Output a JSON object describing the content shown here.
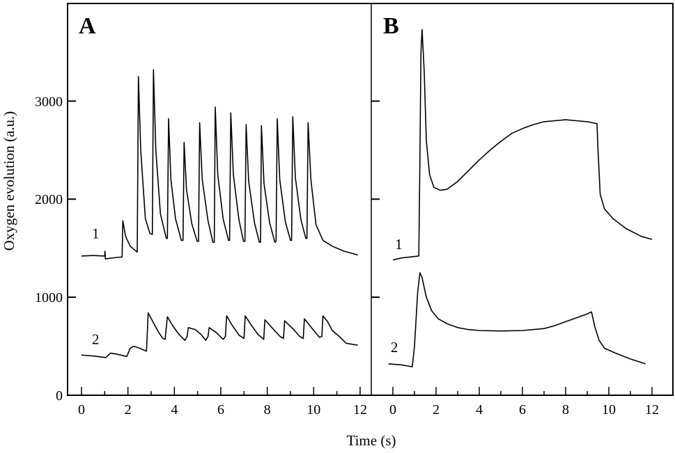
{
  "figure": {
    "ylabel": "Oxygen evolution (a.u.)",
    "xlabel": "Time (s)",
    "yticks": [
      0,
      1000,
      2000,
      3000
    ],
    "ytick_labels": [
      "0",
      "1000",
      "2000",
      "3000"
    ],
    "xticks": [
      0,
      2,
      4,
      6,
      8,
      10,
      12
    ],
    "xtick_labels": [
      "0",
      "2",
      "4",
      "6",
      "8",
      "10",
      "12"
    ],
    "colors": {
      "line": "#000000",
      "background": "#ffffff"
    }
  },
  "chart_data": [
    {
      "type": "line",
      "panel": "A",
      "title": "A",
      "xlabel": "Time (s)",
      "ylabel": "Oxygen evolution (a.u.)",
      "xlim": [
        0,
        12
      ],
      "ylim": [
        0,
        3800
      ],
      "grid": false,
      "series": [
        {
          "name": "1",
          "label_pos": [
            0.45,
            1600
          ],
          "points": [
            [
              0,
              1420
            ],
            [
              0.5,
              1425
            ],
            [
              1.0,
              1420
            ],
            [
              1.01,
              1470
            ],
            [
              1.03,
              1390
            ],
            [
              1.5,
              1405
            ],
            [
              1.75,
              1410
            ],
            [
              1.78,
              1780
            ],
            [
              1.9,
              1620
            ],
            [
              2.1,
              1520
            ],
            [
              2.35,
              1470
            ],
            [
              2.4,
              1460
            ],
            [
              2.45,
              3250
            ],
            [
              2.55,
              2500
            ],
            [
              2.75,
              1800
            ],
            [
              2.95,
              1650
            ],
            [
              3.05,
              1640
            ],
            [
              3.1,
              3320
            ],
            [
              3.2,
              2500
            ],
            [
              3.4,
              1850
            ],
            [
              3.65,
              1600
            ],
            [
              3.7,
              1600
            ],
            [
              3.75,
              2820
            ],
            [
              3.85,
              2200
            ],
            [
              4.05,
              1800
            ],
            [
              4.3,
              1580
            ],
            [
              4.37,
              1580
            ],
            [
              4.42,
              2580
            ],
            [
              4.52,
              2100
            ],
            [
              4.75,
              1750
            ],
            [
              4.98,
              1570
            ],
            [
              5.04,
              1570
            ],
            [
              5.09,
              2780
            ],
            [
              5.2,
              2200
            ],
            [
              5.45,
              1780
            ],
            [
              5.66,
              1560
            ],
            [
              5.72,
              1560
            ],
            [
              5.76,
              2940
            ],
            [
              5.87,
              2250
            ],
            [
              6.1,
              1800
            ],
            [
              6.33,
              1580
            ],
            [
              6.38,
              1580
            ],
            [
              6.43,
              2880
            ],
            [
              6.54,
              2250
            ],
            [
              6.78,
              1790
            ],
            [
              6.98,
              1570
            ],
            [
              7.04,
              1570
            ],
            [
              7.09,
              2760
            ],
            [
              7.2,
              2180
            ],
            [
              7.45,
              1760
            ],
            [
              7.66,
              1560
            ],
            [
              7.71,
              1560
            ],
            [
              7.75,
              2750
            ],
            [
              7.86,
              2160
            ],
            [
              8.1,
              1760
            ],
            [
              8.33,
              1560
            ],
            [
              8.38,
              1570
            ],
            [
              8.43,
              2820
            ],
            [
              8.54,
              2200
            ],
            [
              8.78,
              1770
            ],
            [
              9.0,
              1580
            ],
            [
              9.05,
              1580
            ],
            [
              9.1,
              2840
            ],
            [
              9.21,
              2220
            ],
            [
              9.45,
              1790
            ],
            [
              9.66,
              1600
            ],
            [
              9.71,
              1600
            ],
            [
              9.76,
              2780
            ],
            [
              9.88,
              2200
            ],
            [
              10.1,
              1740
            ],
            [
              10.4,
              1580
            ],
            [
              10.8,
              1520
            ],
            [
              11.3,
              1470
            ],
            [
              11.9,
              1430
            ]
          ]
        },
        {
          "name": "2",
          "label_pos": [
            0.45,
            520
          ],
          "points": [
            [
              0,
              410
            ],
            [
              0.5,
              400
            ],
            [
              1.05,
              385
            ],
            [
              1.25,
              430
            ],
            [
              1.5,
              420
            ],
            [
              1.95,
              395
            ],
            [
              2.1,
              480
            ],
            [
              2.25,
              500
            ],
            [
              2.5,
              480
            ],
            [
              2.8,
              450
            ],
            [
              2.87,
              840
            ],
            [
              3.05,
              760
            ],
            [
              3.3,
              650
            ],
            [
              3.5,
              580
            ],
            [
              3.6,
              570
            ],
            [
              3.7,
              800
            ],
            [
              3.95,
              700
            ],
            [
              4.2,
              620
            ],
            [
              4.45,
              560
            ],
            [
              4.55,
              600
            ],
            [
              4.6,
              690
            ],
            [
              4.9,
              670
            ],
            [
              5.15,
              620
            ],
            [
              5.35,
              560
            ],
            [
              5.45,
              600
            ],
            [
              5.5,
              690
            ],
            [
              5.8,
              640
            ],
            [
              6.1,
              570
            ],
            [
              6.2,
              600
            ],
            [
              6.25,
              810
            ],
            [
              6.5,
              710
            ],
            [
              6.8,
              610
            ],
            [
              7.0,
              580
            ],
            [
              7.05,
              810
            ],
            [
              7.3,
              720
            ],
            [
              7.6,
              620
            ],
            [
              7.85,
              570
            ],
            [
              7.9,
              770
            ],
            [
              8.2,
              690
            ],
            [
              8.55,
              600
            ],
            [
              8.7,
              580
            ],
            [
              8.75,
              760
            ],
            [
              9.1,
              680
            ],
            [
              9.4,
              600
            ],
            [
              9.55,
              580
            ],
            [
              9.6,
              780
            ],
            [
              9.9,
              690
            ],
            [
              10.25,
              590
            ],
            [
              10.35,
              600
            ],
            [
              10.4,
              810
            ],
            [
              10.6,
              750
            ],
            [
              10.8,
              660
            ],
            [
              11.1,
              600
            ],
            [
              11.4,
              530
            ],
            [
              11.9,
              510
            ]
          ]
        }
      ]
    },
    {
      "type": "line",
      "panel": "B",
      "title": "B",
      "xlabel": "Time (s)",
      "ylabel": "Oxygen evolution (a.u.)",
      "xlim": [
        0,
        12
      ],
      "ylim": [
        0,
        3800
      ],
      "grid": false,
      "series": [
        {
          "name": "1",
          "label_pos": [
            0.1,
            1490
          ],
          "points": [
            [
              0,
              1380
            ],
            [
              0.4,
              1400
            ],
            [
              1.2,
              1420
            ],
            [
              1.25,
              2400
            ],
            [
              1.3,
              3500
            ],
            [
              1.35,
              3730
            ],
            [
              1.45,
              3300
            ],
            [
              1.55,
              2600
            ],
            [
              1.7,
              2250
            ],
            [
              1.9,
              2120
            ],
            [
              2.2,
              2090
            ],
            [
              2.5,
              2100
            ],
            [
              3.0,
              2180
            ],
            [
              3.5,
              2290
            ],
            [
              4.0,
              2400
            ],
            [
              4.5,
              2500
            ],
            [
              5.0,
              2590
            ],
            [
              5.5,
              2670
            ],
            [
              6.0,
              2720
            ],
            [
              6.5,
              2760
            ],
            [
              7.0,
              2790
            ],
            [
              7.5,
              2800
            ],
            [
              8.0,
              2810
            ],
            [
              8.5,
              2800
            ],
            [
              9.0,
              2790
            ],
            [
              9.45,
              2770
            ],
            [
              9.5,
              2500
            ],
            [
              9.6,
              2050
            ],
            [
              9.8,
              1900
            ],
            [
              10.2,
              1800
            ],
            [
              10.8,
              1700
            ],
            [
              11.5,
              1620
            ],
            [
              12.0,
              1590
            ]
          ]
        },
        {
          "name": "2",
          "label_pos": [
            -0.1,
            440
          ],
          "points": [
            [
              -0.2,
              320
            ],
            [
              0.4,
              310
            ],
            [
              0.9,
              290
            ],
            [
              1.0,
              500
            ],
            [
              1.15,
              1050
            ],
            [
              1.25,
              1250
            ],
            [
              1.35,
              1200
            ],
            [
              1.55,
              1000
            ],
            [
              1.8,
              860
            ],
            [
              2.1,
              780
            ],
            [
              2.5,
              730
            ],
            [
              3.0,
              690
            ],
            [
              3.5,
              670
            ],
            [
              4.0,
              660
            ],
            [
              5.0,
              655
            ],
            [
              6.0,
              660
            ],
            [
              7.0,
              680
            ],
            [
              7.5,
              710
            ],
            [
              8.0,
              750
            ],
            [
              8.5,
              790
            ],
            [
              9.0,
              830
            ],
            [
              9.2,
              850
            ],
            [
              9.35,
              700
            ],
            [
              9.55,
              560
            ],
            [
              9.8,
              480
            ],
            [
              10.3,
              430
            ],
            [
              11.0,
              370
            ],
            [
              11.7,
              320
            ]
          ]
        }
      ]
    }
  ]
}
